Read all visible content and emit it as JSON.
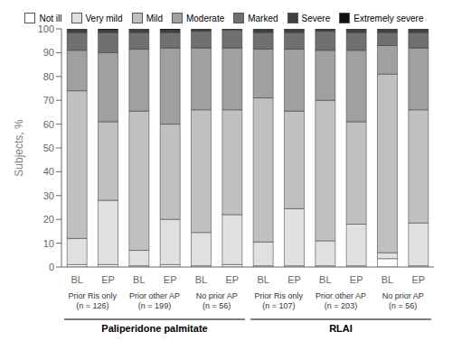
{
  "chart_data": {
    "type": "bar",
    "stacked": true,
    "grid": false,
    "legend": "top",
    "y_label": "Subjects, %",
    "categories": [
      "BL",
      "EP",
      "BL",
      "EP",
      "BL",
      "EP",
      "BL",
      "EP",
      "BL",
      "EP",
      "BL",
      "EP"
    ],
    "group_labels": [
      "Prior Ris only\n(n = 126)",
      "Prior other AP\n(n = 199)",
      "No prior AP\n(n = 56)",
      "Prior Ris only\n(n = 107)",
      "Prior other AP\n(n = 203)",
      "No prior AP\n(n = 56)"
    ],
    "section_labels": [
      "Paliperidone palmitate",
      "RLAI"
    ],
    "ylim": [
      0,
      100
    ],
    "yticks": [
      0,
      10,
      20,
      30,
      40,
      50,
      60,
      70,
      80,
      90,
      100
    ],
    "series": [
      {
        "name": "Not ill",
        "color": "#ffffff",
        "values": [
          1.0,
          1.0,
          0.5,
          1.0,
          0.5,
          1.0,
          0.5,
          0.5,
          0.5,
          0.5,
          3.5,
          0.5
        ]
      },
      {
        "name": "Very mild",
        "color": "#e0e0e0",
        "values": [
          11.0,
          27.0,
          6.5,
          19.0,
          14.0,
          21.0,
          10.0,
          24.0,
          10.5,
          17.5,
          2.5,
          18.0
        ]
      },
      {
        "name": "Mild",
        "color": "#c0c0c0",
        "values": [
          62.0,
          33.0,
          58.5,
          40.0,
          51.5,
          44.0,
          60.5,
          41.0,
          59.0,
          43.0,
          75.0,
          47.5
        ]
      },
      {
        "name": "Moderate",
        "color": "#a0a0a0",
        "values": [
          17.0,
          29.0,
          26.0,
          32.0,
          26.0,
          26.0,
          20.5,
          26.0,
          21.0,
          30.0,
          12.0,
          26.0
        ]
      },
      {
        "name": "Marked",
        "color": "#707070",
        "values": [
          7.5,
          8.5,
          7.0,
          6.5,
          7.0,
          7.5,
          7.0,
          7.0,
          8.0,
          7.5,
          5.5,
          6.5
        ]
      },
      {
        "name": "Severe",
        "color": "#404040",
        "values": [
          1.5,
          1.0,
          1.5,
          1.0,
          1.0,
          0.5,
          1.5,
          1.5,
          1.0,
          1.5,
          1.5,
          1.5
        ]
      },
      {
        "name": "Extremely severe",
        "color": "#101010",
        "values": [
          0.0,
          0.5,
          0.0,
          0.5,
          0.0,
          0.0,
          0.0,
          0.0,
          0.0,
          0.0,
          0.0,
          0.0
        ]
      }
    ]
  }
}
